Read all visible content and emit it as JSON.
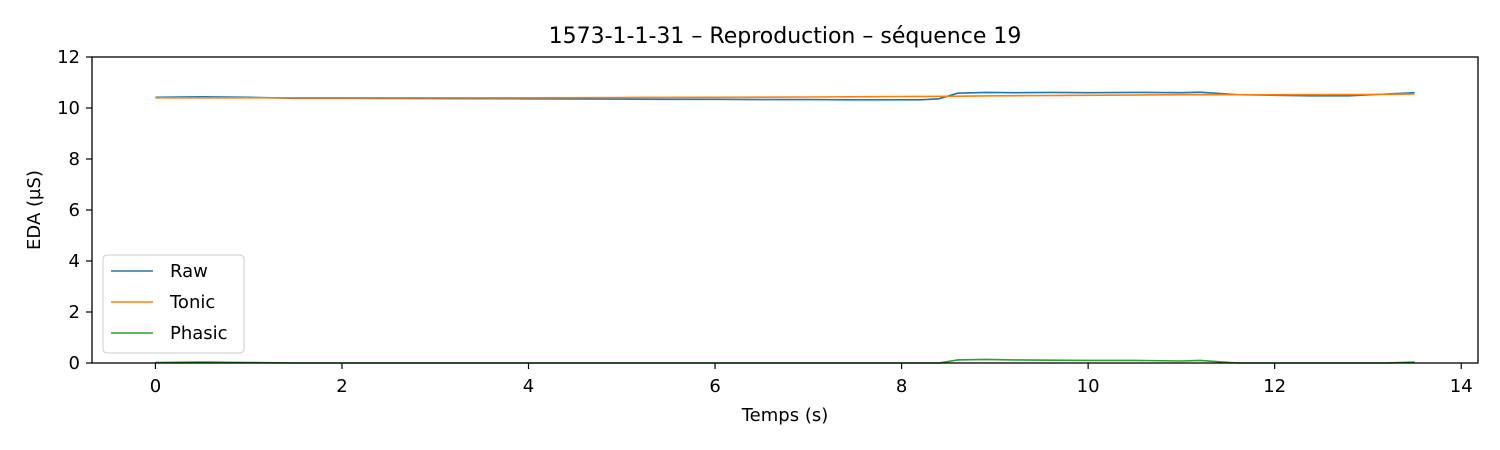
{
  "chart_data": {
    "type": "line",
    "title": "1573-1-1-31 – Reproduction – séquence 19",
    "xlabel": "Temps (s)",
    "ylabel": "EDA (µS)",
    "xlim": [
      -0.68,
      14.18
    ],
    "ylim": [
      0,
      12
    ],
    "xticks": [
      0,
      2,
      4,
      6,
      8,
      10,
      12,
      14
    ],
    "yticks": [
      0,
      2,
      4,
      6,
      8,
      10,
      12
    ],
    "grid": false,
    "legend_position": "lower-left",
    "series": [
      {
        "name": "Raw",
        "color": "#1f77b4",
        "x": [
          0,
          0.5,
          1.0,
          1.5,
          2.0,
          3.0,
          4.0,
          5.0,
          5.5,
          6.0,
          6.5,
          7.0,
          7.5,
          8.0,
          8.2,
          8.4,
          8.6,
          8.9,
          9.2,
          9.6,
          10.0,
          10.5,
          11.0,
          11.2,
          11.6,
          12.0,
          12.4,
          12.8,
          13.2,
          13.5
        ],
        "y": [
          10.42,
          10.44,
          10.42,
          10.38,
          10.38,
          10.37,
          10.36,
          10.35,
          10.34,
          10.34,
          10.33,
          10.33,
          10.32,
          10.32,
          10.32,
          10.36,
          10.58,
          10.61,
          10.6,
          10.61,
          10.6,
          10.61,
          10.6,
          10.62,
          10.52,
          10.5,
          10.48,
          10.48,
          10.55,
          10.6
        ]
      },
      {
        "name": "Tonic",
        "color": "#ff7f0e",
        "x": [
          0,
          1.0,
          2.0,
          3.0,
          4.0,
          5.0,
          6.0,
          7.0,
          8.0,
          8.5,
          9.0,
          10.0,
          11.0,
          12.0,
          13.0,
          13.5
        ],
        "y": [
          10.4,
          10.4,
          10.4,
          10.4,
          10.4,
          10.41,
          10.42,
          10.43,
          10.45,
          10.46,
          10.48,
          10.5,
          10.52,
          10.52,
          10.53,
          10.55
        ]
      },
      {
        "name": "Phasic",
        "color": "#2ca02c",
        "x": [
          0,
          0.5,
          1.0,
          1.5,
          2.0,
          3.0,
          4.0,
          5.0,
          6.0,
          7.0,
          8.0,
          8.4,
          8.6,
          8.9,
          9.2,
          9.6,
          10.0,
          10.5,
          11.0,
          11.2,
          11.6,
          12.0,
          12.8,
          13.2,
          13.5
        ],
        "y": [
          0.02,
          0.04,
          0.02,
          0.0,
          0.0,
          0.0,
          0.0,
          0.0,
          0.0,
          0.0,
          0.0,
          0.0,
          0.12,
          0.14,
          0.12,
          0.11,
          0.1,
          0.1,
          0.08,
          0.1,
          0.0,
          0.0,
          0.0,
          0.0,
          0.04
        ]
      }
    ]
  }
}
